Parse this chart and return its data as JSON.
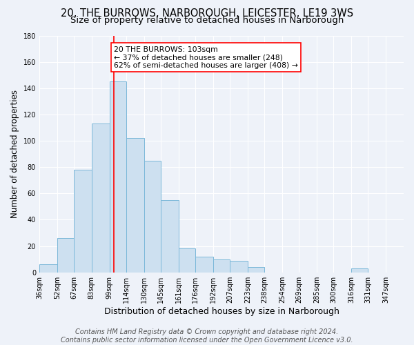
{
  "title": "20, THE BURROWS, NARBOROUGH, LEICESTER, LE19 3WS",
  "subtitle": "Size of property relative to detached houses in Narborough",
  "xlabel": "Distribution of detached houses by size in Narborough",
  "ylabel": "Number of detached properties",
  "bin_labels": [
    "36sqm",
    "52sqm",
    "67sqm",
    "83sqm",
    "99sqm",
    "114sqm",
    "130sqm",
    "145sqm",
    "161sqm",
    "176sqm",
    "192sqm",
    "207sqm",
    "223sqm",
    "238sqm",
    "254sqm",
    "269sqm",
    "285sqm",
    "300sqm",
    "316sqm",
    "331sqm",
    "347sqm"
  ],
  "bin_edges": [
    36,
    52,
    67,
    83,
    99,
    114,
    130,
    145,
    161,
    176,
    192,
    207,
    223,
    238,
    254,
    269,
    285,
    300,
    316,
    331,
    347,
    363
  ],
  "values": [
    6,
    26,
    78,
    113,
    145,
    102,
    85,
    55,
    18,
    12,
    10,
    9,
    4,
    0,
    0,
    0,
    0,
    0,
    3,
    0,
    0
  ],
  "bar_color": "#cde0f0",
  "bar_edge_color": "#7bb8d9",
  "property_line_x": 103,
  "property_line_color": "red",
  "annotation_text": "20 THE BURROWS: 103sqm\n← 37% of detached houses are smaller (248)\n62% of semi-detached houses are larger (408) →",
  "annotation_box_color": "white",
  "annotation_box_edge_color": "red",
  "ylim": [
    0,
    180
  ],
  "yticks": [
    0,
    20,
    40,
    60,
    80,
    100,
    120,
    140,
    160,
    180
  ],
  "footer_line1": "Contains HM Land Registry data © Crown copyright and database right 2024.",
  "footer_line2": "Contains public sector information licensed under the Open Government Licence v3.0.",
  "background_color": "#eef2f9",
  "grid_color": "white",
  "title_fontsize": 10.5,
  "subtitle_fontsize": 9.5,
  "xlabel_fontsize": 9,
  "ylabel_fontsize": 8.5,
  "tick_fontsize": 7,
  "footer_fontsize": 7,
  "annot_fontsize": 7.8
}
